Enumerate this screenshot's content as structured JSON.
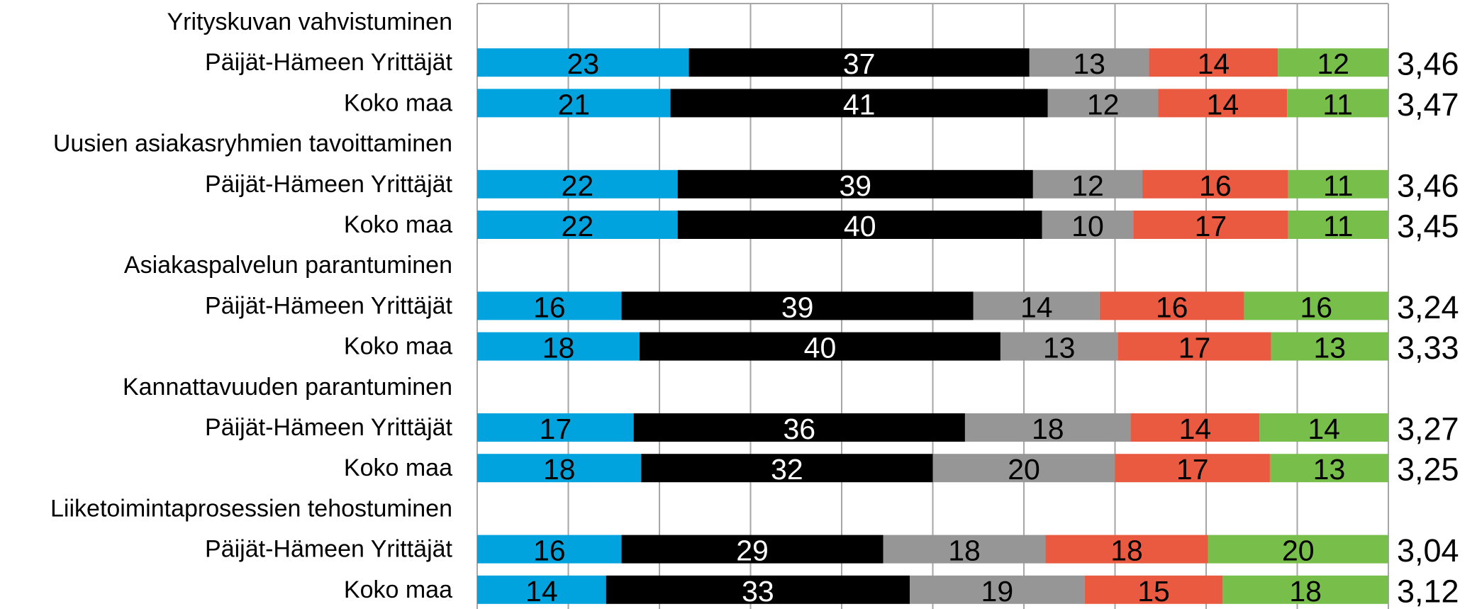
{
  "chart_data": {
    "type": "bar",
    "orientation": "horizontal",
    "stacked": true,
    "grid": true,
    "xlim": [
      0,
      100
    ],
    "series_colors": [
      "#00A3DD",
      "#000000",
      "#969696",
      "#EA5A40",
      "#78BE4B"
    ],
    "groups": [
      {
        "title": "Yrityskuvan vahvistuminen",
        "rows": [
          {
            "label": "Päijät-Hämeen Yrittäjät",
            "values": [
              23,
              37,
              13,
              14,
              12
            ],
            "average": "3,46"
          },
          {
            "label": "Koko maa",
            "values": [
              21,
              41,
              12,
              14,
              11
            ],
            "average": "3,47"
          }
        ]
      },
      {
        "title": "Uusien asiakasryhmien tavoittaminen",
        "rows": [
          {
            "label": "Päijät-Hämeen Yrittäjät",
            "values": [
              22,
              39,
              12,
              16,
              11
            ],
            "average": "3,46"
          },
          {
            "label": "Koko maa",
            "values": [
              22,
              40,
              10,
              17,
              11
            ],
            "average": "3,45"
          }
        ]
      },
      {
        "title": "Asiakaspalvelun parantuminen",
        "rows": [
          {
            "label": "Päijät-Hämeen Yrittäjät",
            "values": [
              16,
              39,
              14,
              16,
              16
            ],
            "average": "3,24"
          },
          {
            "label": "Koko maa",
            "values": [
              18,
              40,
              13,
              17,
              13
            ],
            "average": "3,33"
          }
        ]
      },
      {
        "title": "Kannattavuuden parantuminen",
        "rows": [
          {
            "label": "Päijät-Hämeen Yrittäjät",
            "values": [
              17,
              36,
              18,
              14,
              14
            ],
            "average": "3,27"
          },
          {
            "label": "Koko maa",
            "values": [
              18,
              32,
              20,
              17,
              13
            ],
            "average": "3,25"
          }
        ]
      },
      {
        "title": "Liiketoimintaprosessien tehostuminen",
        "rows": [
          {
            "label": "Päijät-Hämeen Yrittäjät",
            "values": [
              16,
              29,
              18,
              18,
              20
            ],
            "average": "3,04"
          },
          {
            "label": "Koko maa",
            "values": [
              14,
              33,
              19,
              15,
              18
            ],
            "average": "3,12"
          }
        ]
      }
    ]
  }
}
